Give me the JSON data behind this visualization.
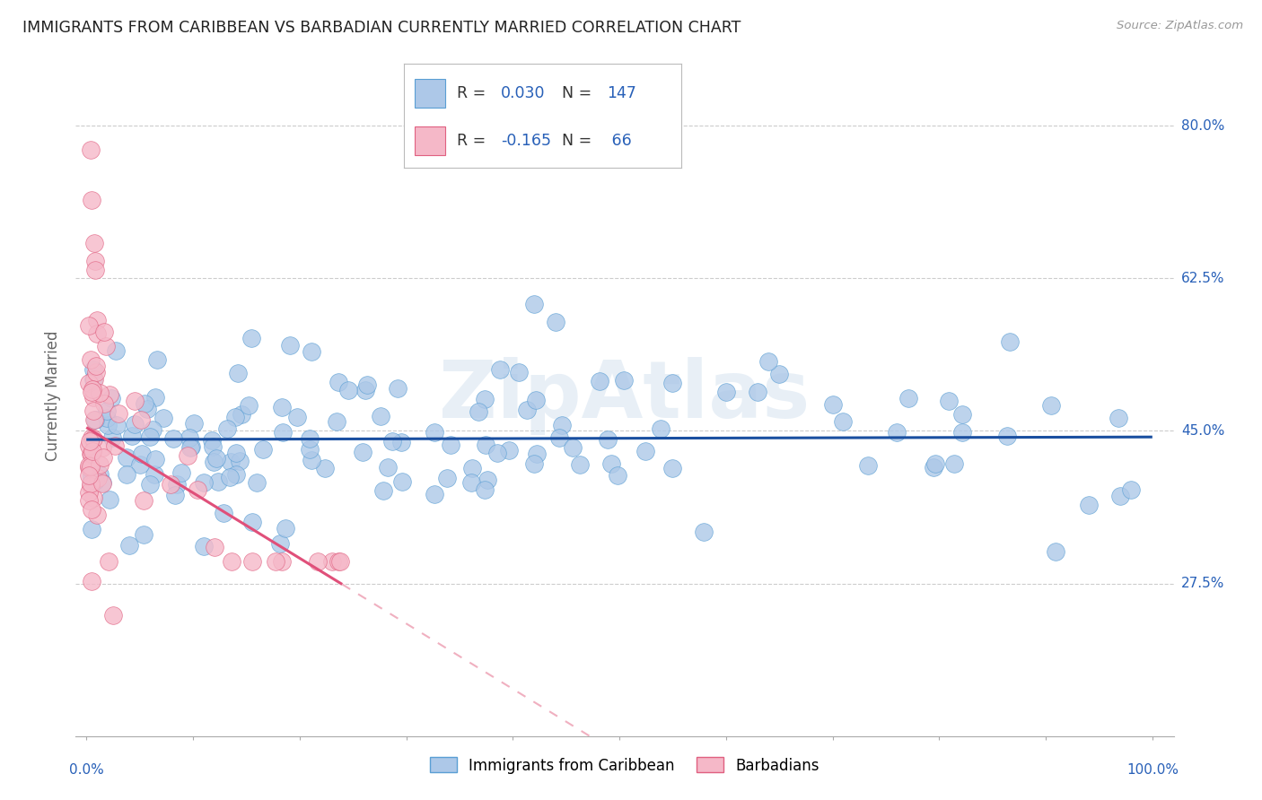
{
  "title": "IMMIGRANTS FROM CARIBBEAN VS BARBADIAN CURRENTLY MARRIED CORRELATION CHART",
  "source": "Source: ZipAtlas.com",
  "ylabel": "Currently Married",
  "ytick_labels": [
    "27.5%",
    "45.0%",
    "62.5%",
    "80.0%"
  ],
  "ytick_values": [
    0.275,
    0.45,
    0.625,
    0.8
  ],
  "xlim": [
    -0.01,
    1.02
  ],
  "ylim": [
    0.1,
    0.88
  ],
  "watermark": "ZipAtlas",
  "scatter1_color": "#adc8e8",
  "scatter1_edge": "#5a9fd4",
  "scatter2_color": "#f5b8c8",
  "scatter2_edge": "#e06080",
  "line1_color": "#1a4fa0",
  "line2_color_solid": "#e0507a",
  "line2_color_dash": "#f0b0c0",
  "background": "#ffffff",
  "grid_color": "#cccccc",
  "blue_text": "#2860b8",
  "legend_box_color": "#e8e8e8"
}
